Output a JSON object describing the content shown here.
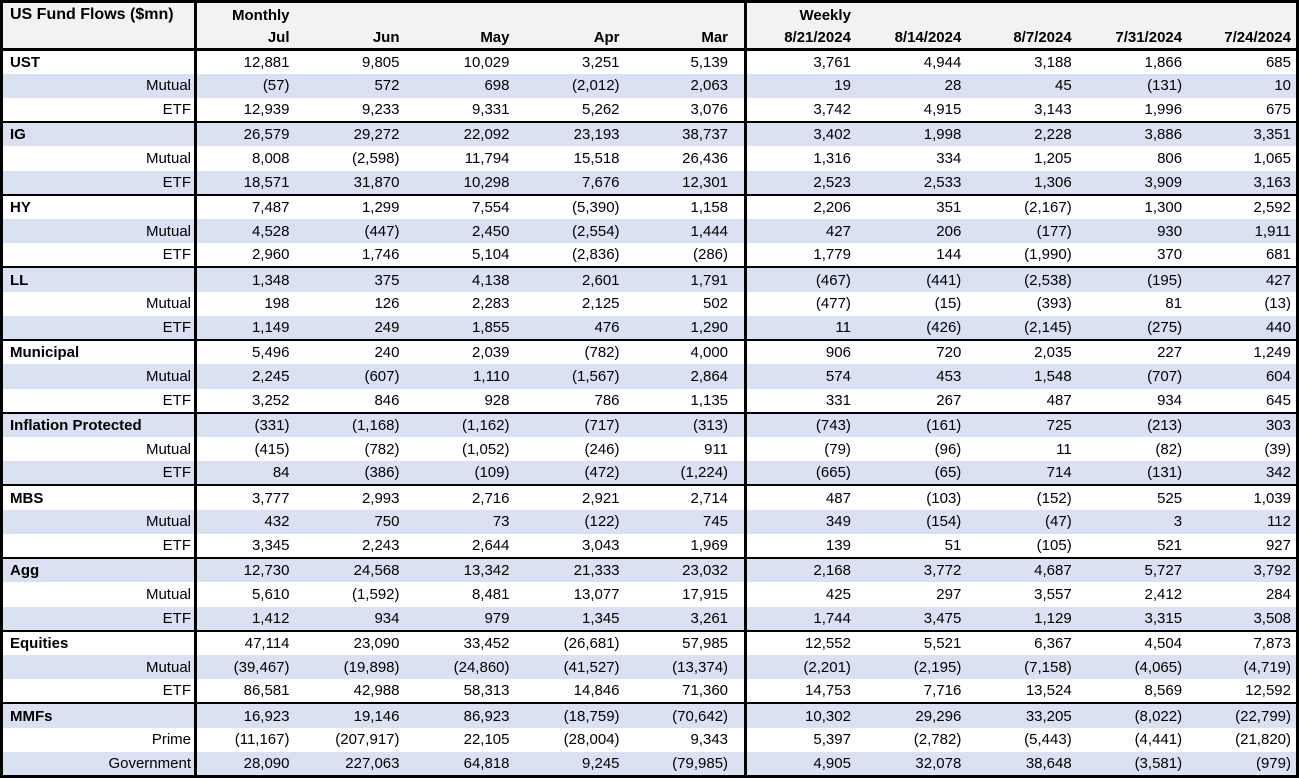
{
  "colors": {
    "band_blue": "#D9E1F2",
    "header_gray": "#F2F2F2",
    "border_black": "#000000",
    "text_black": "#000000"
  },
  "chart_data": {
    "type": "table",
    "title": "US Fund Flows ($mn)",
    "column_groups": [
      {
        "label": "Monthly",
        "columns": [
          "Jul",
          "Jun",
          "May",
          "Apr",
          "Mar"
        ]
      },
      {
        "label": "Weekly",
        "columns": [
          "8/21/2024",
          "8/14/2024",
          "8/7/2024",
          "7/31/2024",
          "7/24/2024"
        ]
      }
    ],
    "groups": [
      {
        "name": "UST",
        "rows": [
          {
            "label": "UST",
            "header": true,
            "monthly": [
              "12,881",
              "9,805",
              "10,029",
              "3,251",
              "5,139"
            ],
            "weekly": [
              "3,761",
              "4,944",
              "3,188",
              "1,866",
              "685"
            ]
          },
          {
            "label": "Mutual",
            "header": false,
            "monthly": [
              "(57)",
              "572",
              "698",
              "(2,012)",
              "2,063"
            ],
            "weekly": [
              "19",
              "28",
              "45",
              "(131)",
              "10"
            ]
          },
          {
            "label": "ETF",
            "header": false,
            "monthly": [
              "12,939",
              "9,233",
              "9,331",
              "5,262",
              "3,076"
            ],
            "weekly": [
              "3,742",
              "4,915",
              "3,143",
              "1,996",
              "675"
            ]
          }
        ]
      },
      {
        "name": "IG",
        "rows": [
          {
            "label": "IG",
            "header": true,
            "monthly": [
              "26,579",
              "29,272",
              "22,092",
              "23,193",
              "38,737"
            ],
            "weekly": [
              "3,402",
              "1,998",
              "2,228",
              "3,886",
              "3,351"
            ]
          },
          {
            "label": "Mutual",
            "header": false,
            "monthly": [
              "8,008",
              "(2,598)",
              "11,794",
              "15,518",
              "26,436"
            ],
            "weekly": [
              "1,316",
              "334",
              "1,205",
              "806",
              "1,065"
            ]
          },
          {
            "label": "ETF",
            "header": false,
            "monthly": [
              "18,571",
              "31,870",
              "10,298",
              "7,676",
              "12,301"
            ],
            "weekly": [
              "2,523",
              "2,533",
              "1,306",
              "3,909",
              "3,163"
            ]
          }
        ]
      },
      {
        "name": "HY",
        "rows": [
          {
            "label": "HY",
            "header": true,
            "monthly": [
              "7,487",
              "1,299",
              "7,554",
              "(5,390)",
              "1,158"
            ],
            "weekly": [
              "2,206",
              "351",
              "(2,167)",
              "1,300",
              "2,592"
            ]
          },
          {
            "label": "Mutual",
            "header": false,
            "monthly": [
              "4,528",
              "(447)",
              "2,450",
              "(2,554)",
              "1,444"
            ],
            "weekly": [
              "427",
              "206",
              "(177)",
              "930",
              "1,911"
            ]
          },
          {
            "label": "ETF",
            "header": false,
            "monthly": [
              "2,960",
              "1,746",
              "5,104",
              "(2,836)",
              "(286)"
            ],
            "weekly": [
              "1,779",
              "144",
              "(1,990)",
              "370",
              "681"
            ]
          }
        ]
      },
      {
        "name": "LL",
        "rows": [
          {
            "label": "LL",
            "header": true,
            "monthly": [
              "1,348",
              "375",
              "4,138",
              "2,601",
              "1,791"
            ],
            "weekly": [
              "(467)",
              "(441)",
              "(2,538)",
              "(195)",
              "427"
            ]
          },
          {
            "label": "Mutual",
            "header": false,
            "monthly": [
              "198",
              "126",
              "2,283",
              "2,125",
              "502"
            ],
            "weekly": [
              "(477)",
              "(15)",
              "(393)",
              "81",
              "(13)"
            ]
          },
          {
            "label": "ETF",
            "header": false,
            "monthly": [
              "1,149",
              "249",
              "1,855",
              "476",
              "1,290"
            ],
            "weekly": [
              "11",
              "(426)",
              "(2,145)",
              "(275)",
              "440"
            ]
          }
        ]
      },
      {
        "name": "Municipal",
        "rows": [
          {
            "label": "Municipal",
            "header": true,
            "monthly": [
              "5,496",
              "240",
              "2,039",
              "(782)",
              "4,000"
            ],
            "weekly": [
              "906",
              "720",
              "2,035",
              "227",
              "1,249"
            ]
          },
          {
            "label": "Mutual",
            "header": false,
            "monthly": [
              "2,245",
              "(607)",
              "1,110",
              "(1,567)",
              "2,864"
            ],
            "weekly": [
              "574",
              "453",
              "1,548",
              "(707)",
              "604"
            ]
          },
          {
            "label": "ETF",
            "header": false,
            "monthly": [
              "3,252",
              "846",
              "928",
              "786",
              "1,135"
            ],
            "weekly": [
              "331",
              "267",
              "487",
              "934",
              "645"
            ]
          }
        ]
      },
      {
        "name": "Inflation Protected",
        "rows": [
          {
            "label": "Inflation Protected",
            "header": true,
            "monthly": [
              "(331)",
              "(1,168)",
              "(1,162)",
              "(717)",
              "(313)"
            ],
            "weekly": [
              "(743)",
              "(161)",
              "725",
              "(213)",
              "303"
            ]
          },
          {
            "label": "Mutual",
            "header": false,
            "monthly": [
              "(415)",
              "(782)",
              "(1,052)",
              "(246)",
              "911"
            ],
            "weekly": [
              "(79)",
              "(96)",
              "11",
              "(82)",
              "(39)"
            ]
          },
          {
            "label": "ETF",
            "header": false,
            "monthly": [
              "84",
              "(386)",
              "(109)",
              "(472)",
              "(1,224)"
            ],
            "weekly": [
              "(665)",
              "(65)",
              "714",
              "(131)",
              "342"
            ]
          }
        ]
      },
      {
        "name": "MBS",
        "rows": [
          {
            "label": "MBS",
            "header": true,
            "monthly": [
              "3,777",
              "2,993",
              "2,716",
              "2,921",
              "2,714"
            ],
            "weekly": [
              "487",
              "(103)",
              "(152)",
              "525",
              "1,039"
            ]
          },
          {
            "label": "Mutual",
            "header": false,
            "monthly": [
              "432",
              "750",
              "73",
              "(122)",
              "745"
            ],
            "weekly": [
              "349",
              "(154)",
              "(47)",
              "3",
              "112"
            ]
          },
          {
            "label": "ETF",
            "header": false,
            "monthly": [
              "3,345",
              "2,243",
              "2,644",
              "3,043",
              "1,969"
            ],
            "weekly": [
              "139",
              "51",
              "(105)",
              "521",
              "927"
            ]
          }
        ]
      },
      {
        "name": "Agg",
        "rows": [
          {
            "label": "Agg",
            "header": true,
            "monthly": [
              "12,730",
              "24,568",
              "13,342",
              "21,333",
              "23,032"
            ],
            "weekly": [
              "2,168",
              "3,772",
              "4,687",
              "5,727",
              "3,792"
            ]
          },
          {
            "label": "Mutual",
            "header": false,
            "monthly": [
              "5,610",
              "(1,592)",
              "8,481",
              "13,077",
              "17,915"
            ],
            "weekly": [
              "425",
              "297",
              "3,557",
              "2,412",
              "284"
            ]
          },
          {
            "label": "ETF",
            "header": false,
            "monthly": [
              "1,412",
              "934",
              "979",
              "1,345",
              "3,261"
            ],
            "weekly": [
              "1,744",
              "3,475",
              "1,129",
              "3,315",
              "3,508"
            ]
          }
        ]
      },
      {
        "name": "Equities",
        "rows": [
          {
            "label": "Equities",
            "header": true,
            "monthly": [
              "47,114",
              "23,090",
              "33,452",
              "(26,681)",
              "57,985"
            ],
            "weekly": [
              "12,552",
              "5,521",
              "6,367",
              "4,504",
              "7,873"
            ]
          },
          {
            "label": "Mutual",
            "header": false,
            "monthly": [
              "(39,467)",
              "(19,898)",
              "(24,860)",
              "(41,527)",
              "(13,374)"
            ],
            "weekly": [
              "(2,201)",
              "(2,195)",
              "(7,158)",
              "(4,065)",
              "(4,719)"
            ]
          },
          {
            "label": "ETF",
            "header": false,
            "monthly": [
              "86,581",
              "42,988",
              "58,313",
              "14,846",
              "71,360"
            ],
            "weekly": [
              "14,753",
              "7,716",
              "13,524",
              "8,569",
              "12,592"
            ]
          }
        ]
      },
      {
        "name": "MMFs",
        "rows": [
          {
            "label": "MMFs",
            "header": true,
            "monthly": [
              "16,923",
              "19,146",
              "86,923",
              "(18,759)",
              "(70,642)"
            ],
            "weekly": [
              "10,302",
              "29,296",
              "33,205",
              "(8,022)",
              "(22,799)"
            ]
          },
          {
            "label": "Prime",
            "header": false,
            "monthly": [
              "(11,167)",
              "(207,917)",
              "22,105",
              "(28,004)",
              "9,343"
            ],
            "weekly": [
              "5,397",
              "(2,782)",
              "(5,443)",
              "(4,441)",
              "(21,820)"
            ]
          },
          {
            "label": "Government",
            "header": false,
            "monthly": [
              "28,090",
              "227,063",
              "64,818",
              "9,245",
              "(79,985)"
            ],
            "weekly": [
              "4,905",
              "32,078",
              "38,648",
              "(3,581)",
              "(979)"
            ]
          }
        ]
      }
    ]
  }
}
